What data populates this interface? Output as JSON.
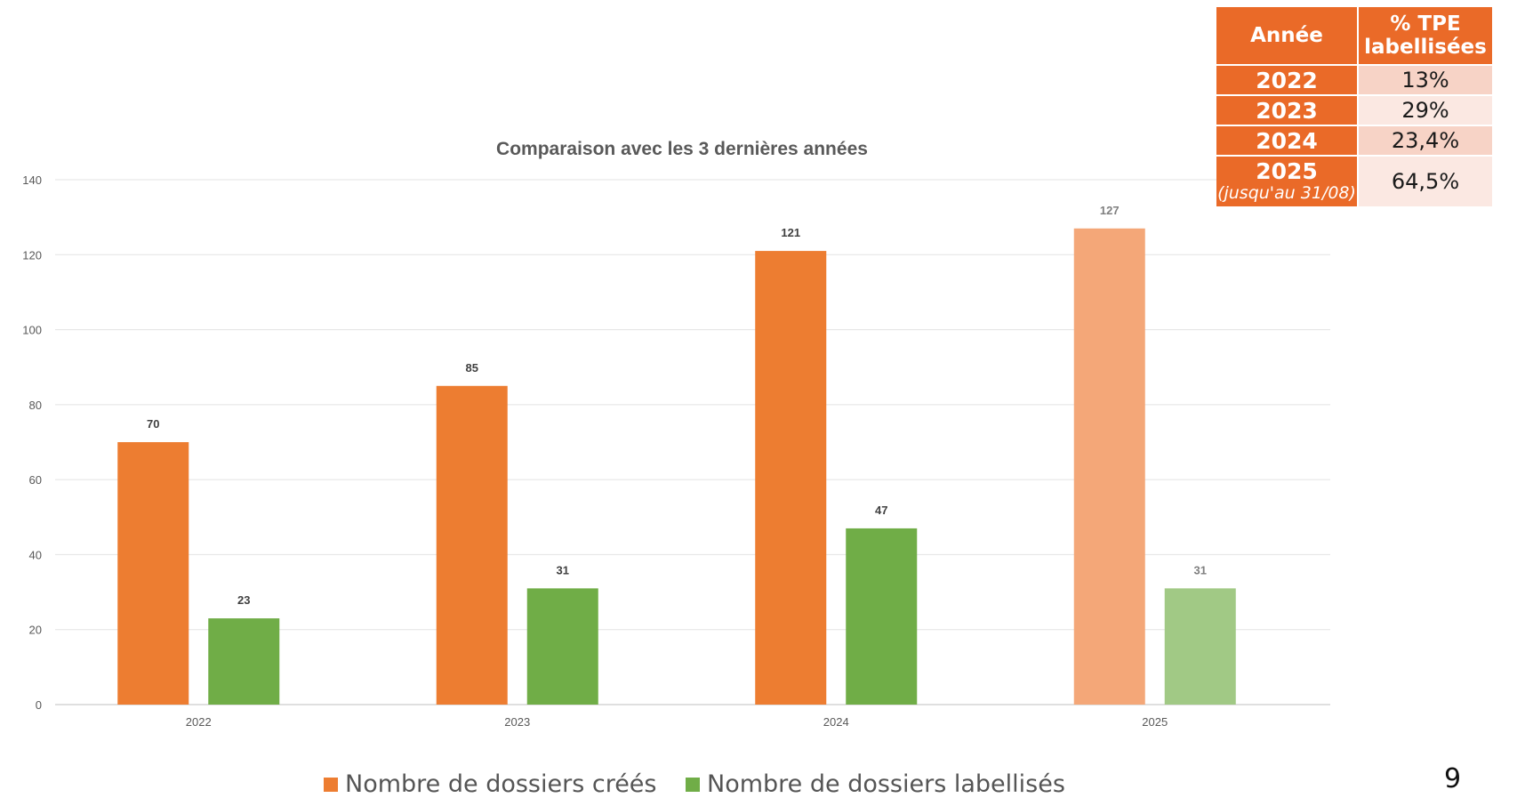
{
  "chart_data": {
    "type": "bar",
    "title": "Comparaison avec les 3 dernières années",
    "categories": [
      "2022",
      "2023",
      "2024",
      "2025"
    ],
    "series": [
      {
        "name": "Nombre de dossiers créés",
        "values": [
          70,
          85,
          121,
          127
        ],
        "color": "#ed7d31",
        "highlight_color": "#f4a778"
      },
      {
        "name": "Nombre de dossiers labellisés",
        "values": [
          23,
          31,
          47,
          31
        ],
        "color": "#70ad47",
        "highlight_color": "#a1c985"
      }
    ],
    "lighter_category": "2025",
    "ylim": [
      0,
      140
    ],
    "yticks": [
      0,
      20,
      40,
      60,
      80,
      100,
      120,
      140
    ],
    "grid": true,
    "legend": "bottom"
  },
  "table": {
    "headers": [
      "Année",
      "% TPE labellisées"
    ],
    "rows": [
      {
        "year": "2022",
        "note": "",
        "pct": "13%"
      },
      {
        "year": "2023",
        "note": "",
        "pct": "29%"
      },
      {
        "year": "2024",
        "note": "",
        "pct": "23,4%"
      },
      {
        "year": "2025",
        "note": "(jusqu'au 31/08)",
        "pct": "64,5%"
      }
    ]
  },
  "page_number": "9"
}
